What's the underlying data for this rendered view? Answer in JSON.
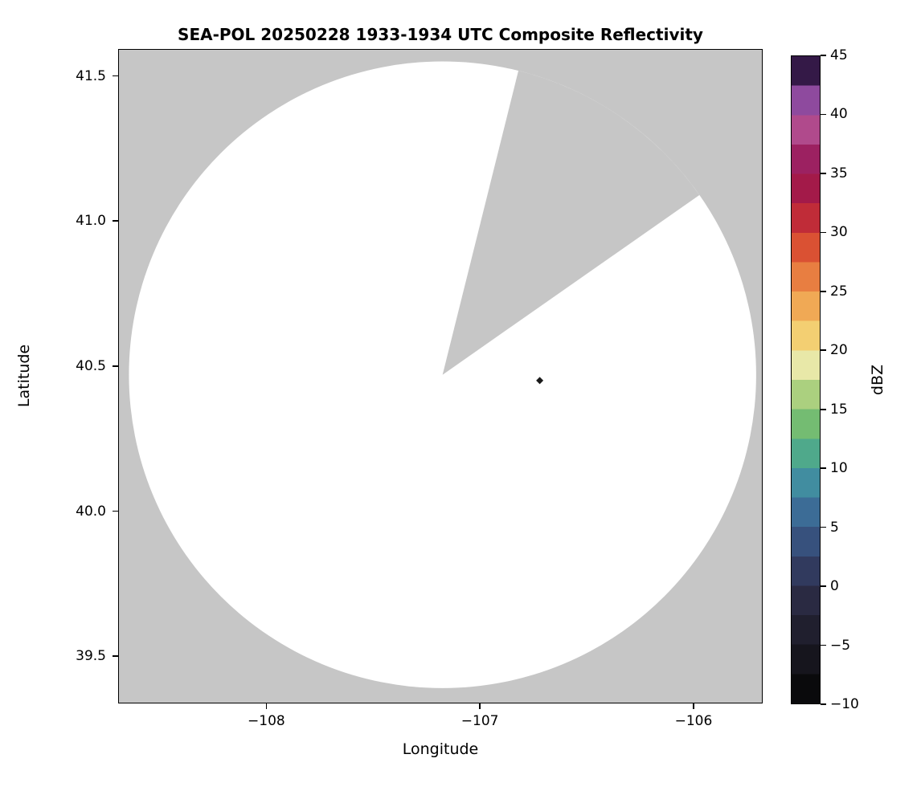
{
  "figure": {
    "background_color": "#ffffff"
  },
  "chart_data": {
    "type": "heatmap",
    "title": "SEA-POL 20250228 1933-1934 UTC Composite Reflectivity",
    "xlabel": "Longitude",
    "ylabel": "Latitude",
    "xlim": [
      -108.69,
      -105.68
    ],
    "ylim": [
      39.34,
      41.59
    ],
    "xticks": [
      -108,
      -107,
      -106
    ],
    "yticks": [
      39.5,
      40.0,
      40.5,
      41.0,
      41.5
    ],
    "grid": false,
    "nodata_color": "#c6c6c6",
    "coverage": {
      "shape": "circle-with-missing-sector",
      "center_lon": -107.175,
      "center_lat": 40.47,
      "radius_lat_deg": 1.08,
      "wedge_start_az_deg": 14,
      "wedge_end_az_deg": 55,
      "fill_color": "#ffffff"
    },
    "points": [
      {
        "lon": -106.72,
        "lat": 40.45,
        "marker": "diamond",
        "color": "#1a1a1a"
      }
    ],
    "colorbar": {
      "label": "dBZ",
      "min": -10,
      "max": 45,
      "ticks": [
        -10,
        -5,
        0,
        5,
        10,
        15,
        20,
        25,
        30,
        35,
        40,
        45
      ],
      "band_colors_bottom_to_top": [
        "#0a0a0c",
        "#16151d",
        "#201f2e",
        "#2a2a42",
        "#313a5e",
        "#37517d",
        "#3c6c96",
        "#418da0",
        "#4fa98b",
        "#74bc72",
        "#abd07f",
        "#e8e8a8",
        "#f3cf72",
        "#f0a955",
        "#e87e41",
        "#da5133",
        "#c02c38",
        "#a31a49",
        "#9c2161",
        "#b04a8c",
        "#8e4a9e",
        "#341947"
      ]
    }
  }
}
